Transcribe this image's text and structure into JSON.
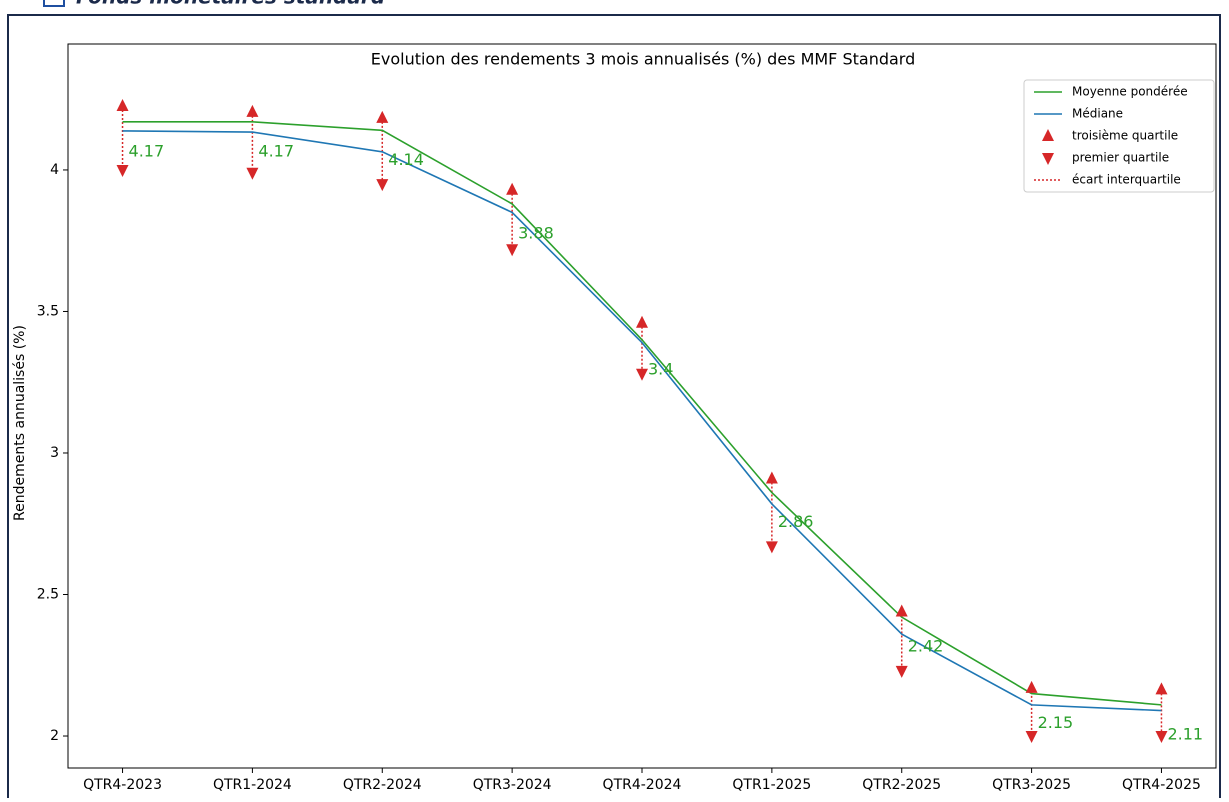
{
  "header_title": "Fonds monétaires standard",
  "chart_data": {
    "type": "line",
    "title": "Evolution des rendements 3 mois annualisés (%) des MMF Standard",
    "y_label": "Rendements annualisés (%)",
    "categories": [
      "QTR4-2023",
      "QTR1-2024",
      "QTR2-2024",
      "QTR3-2024",
      "QTR4-2024",
      "QTR1-2025",
      "QTR2-2025",
      "QTR3-2025",
      "QTR4-2025"
    ],
    "series": [
      {
        "name": "Moyenne pondérée",
        "color": "#2ca02c",
        "values": [
          4.17,
          4.17,
          4.14,
          3.88,
          3.4,
          2.86,
          2.42,
          2.15,
          2.11
        ]
      },
      {
        "name": "Médiane",
        "color": "#1f77b4",
        "values": [
          4.138,
          4.134,
          4.064,
          3.85,
          3.39,
          2.82,
          2.36,
          2.11,
          2.09
        ]
      },
      {
        "name": "troisième quartile",
        "color": "#d62728",
        "marker": "up",
        "values": [
          4.226,
          4.205,
          4.184,
          3.93,
          3.46,
          2.91,
          2.44,
          2.17,
          2.165
        ]
      },
      {
        "name": "premier quartile",
        "color": "#d62728",
        "marker": "down",
        "values": [
          4.0,
          3.99,
          3.95,
          3.72,
          3.28,
          2.67,
          2.23,
          2.0,
          2.0
        ]
      }
    ],
    "interquartile": {
      "name": "écart interquartile",
      "color": "#d62728"
    },
    "ylim": [
      1.887,
      4.445
    ],
    "yticks": [
      2.0,
      2.5,
      3.0,
      3.5,
      4.0
    ],
    "legend": "upper right"
  }
}
